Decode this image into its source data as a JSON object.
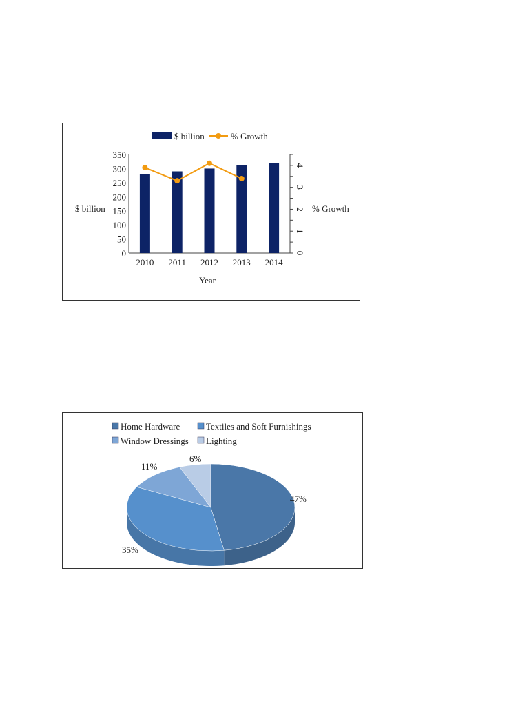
{
  "chart_data": [
    {
      "type": "bar+line",
      "xlabel": "Year",
      "ylabel": "$ billion",
      "y2label": "% Growth",
      "categories": [
        "2010",
        "2011",
        "2012",
        "2013",
        "2014"
      ],
      "ylim": [
        0,
        350
      ],
      "yticks": [
        "0",
        "50",
        "100",
        "150",
        "200",
        "250",
        "300",
        "350"
      ],
      "y2lim": [
        0,
        4.5
      ],
      "y2ticks": [
        "0",
        "1",
        "2",
        "3",
        "4"
      ],
      "legend_position": "top",
      "grid": false,
      "series": [
        {
          "name": "$ billion",
          "type": "bar",
          "axis": "left",
          "color": "#0d2366",
          "values": [
            280,
            290,
            300,
            311,
            320
          ]
        },
        {
          "name": "% Growth",
          "type": "line",
          "axis": "right",
          "color": "#f29b11",
          "values": [
            3.9,
            3.3,
            4.1,
            3.4,
            null
          ]
        }
      ]
    },
    {
      "type": "pie",
      "style": "3d",
      "legend_position": "top",
      "slices": [
        {
          "name": "Home Hardware",
          "value": 47,
          "label": "47%",
          "color": "#4a77a8"
        },
        {
          "name": "Textiles and Soft Furnishings",
          "value": 35,
          "label": "35%",
          "color": "#5690cc"
        },
        {
          "name": "Window Dressings",
          "value": 11,
          "label": "11%",
          "color": "#7ea6d6"
        },
        {
          "name": "Lighting",
          "value": 6,
          "label": "6%",
          "color": "#b9cce6"
        }
      ]
    }
  ]
}
